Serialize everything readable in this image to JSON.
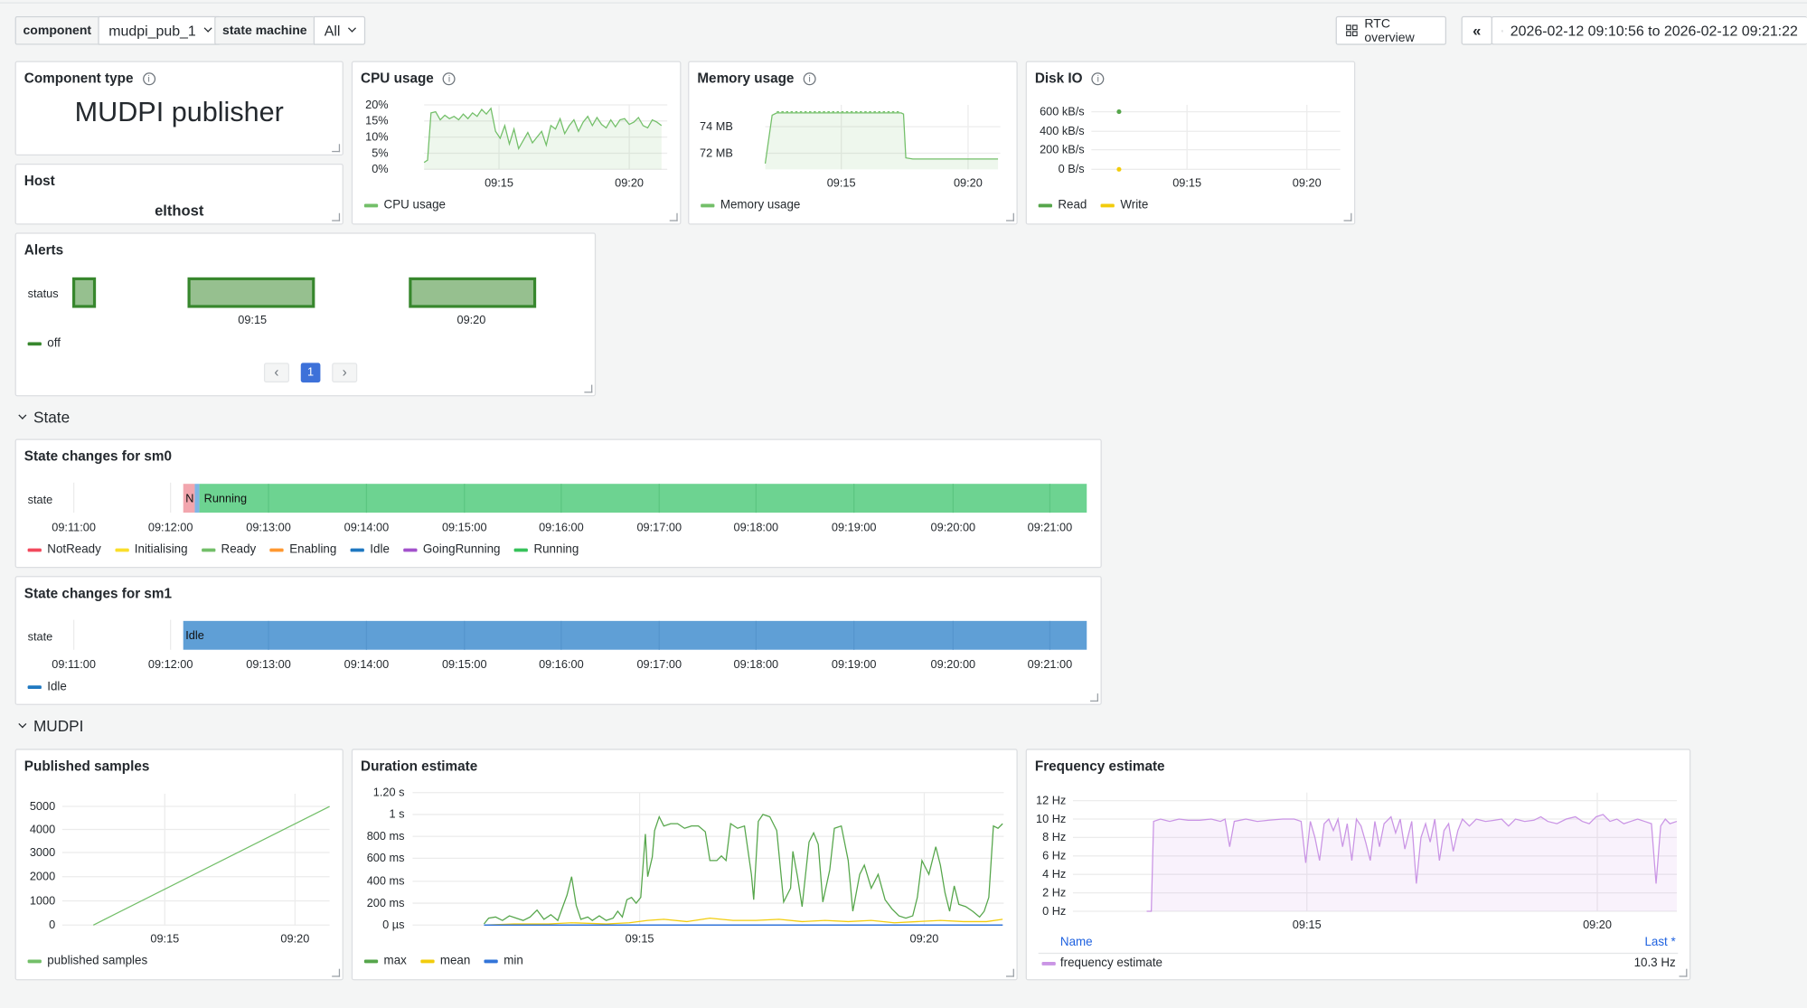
{
  "topbar": {
    "component_label": "component",
    "component_value": "mudpi_pub_1",
    "sm_label": "state machine",
    "sm_value": "All",
    "rtc_label": "RTC overview",
    "time_range": "2026-02-12 09:10:56 to 2026-02-12 09:21:22"
  },
  "component_type": {
    "title": "Component type",
    "value": "MUDPI publisher"
  },
  "host": {
    "title": "Host",
    "value": "elthost"
  },
  "cpu": {
    "title": "CPU usage",
    "yticks": [
      "20%",
      "15%",
      "10%",
      "5%",
      "0%"
    ],
    "xticks": [
      "09:15",
      "09:20"
    ],
    "legend": "CPU usage",
    "color": "#73bf69"
  },
  "memory": {
    "title": "Memory usage",
    "yticks": [
      "74 MB",
      "72 MB"
    ],
    "xticks": [
      "09:15",
      "09:20"
    ],
    "legend": "Memory usage",
    "color": "#73bf69"
  },
  "disk": {
    "title": "Disk IO",
    "yticks": [
      "600 kB/s",
      "400 kB/s",
      "200 kB/s",
      "0 B/s"
    ],
    "xticks": [
      "09:15",
      "09:20"
    ],
    "legend_read": "Read",
    "legend_write": "Write",
    "read_color": "#56a64b",
    "write_color": "#f2cc0c"
  },
  "alerts": {
    "title": "Alerts",
    "row_label": "status",
    "xticks": [
      "09:15",
      "09:20"
    ],
    "legend": "off",
    "page": "1",
    "prev": "‹",
    "next": "›",
    "color": "#37872d"
  },
  "section_state": "State",
  "sm0": {
    "title": "State changes for sm0",
    "row_label": "state",
    "short_label": "N",
    "bar_label": "Running",
    "xticks": [
      "09:11:00",
      "09:12:00",
      "09:13:00",
      "09:14:00",
      "09:15:00",
      "09:16:00",
      "09:17:00",
      "09:18:00",
      "09:19:00",
      "09:20:00",
      "09:21:00"
    ],
    "legend": [
      {
        "name": "NotReady",
        "color": "#f2495c"
      },
      {
        "name": "Initialising",
        "color": "#fade2a"
      },
      {
        "name": "Ready",
        "color": "#73bf69"
      },
      {
        "name": "Enabling",
        "color": "#ff9830"
      },
      {
        "name": "Idle",
        "color": "#1f78c1"
      },
      {
        "name": "GoingRunning",
        "color": "#a352cc"
      },
      {
        "name": "Running",
        "color": "#37c25b"
      }
    ]
  },
  "sm1": {
    "title": "State changes for sm1",
    "row_label": "state",
    "bar_label": "Idle",
    "xticks": [
      "09:11:00",
      "09:12:00",
      "09:13:00",
      "09:14:00",
      "09:15:00",
      "09:16:00",
      "09:17:00",
      "09:18:00",
      "09:19:00",
      "09:20:00",
      "09:21:00"
    ],
    "legend": "Idle",
    "color": "#1f78c1"
  },
  "section_mudpi": "MUDPI",
  "published": {
    "title": "Published samples",
    "yticks": [
      "5000",
      "4000",
      "3000",
      "2000",
      "1000",
      "0"
    ],
    "xticks": [
      "09:15",
      "09:20"
    ],
    "legend": "published samples",
    "color": "#73bf69"
  },
  "duration": {
    "title": "Duration estimate",
    "yticks": [
      "1.20 s",
      "1 s",
      "800 ms",
      "600 ms",
      "400 ms",
      "200 ms",
      "0 µs"
    ],
    "xticks": [
      "09:15",
      "09:20"
    ],
    "legend": [
      {
        "name": "max",
        "color": "#56a64b"
      },
      {
        "name": "mean",
        "color": "#f2cc0c"
      },
      {
        "name": "min",
        "color": "#3274d9"
      }
    ]
  },
  "frequency": {
    "title": "Frequency estimate",
    "yticks": [
      "12 Hz",
      "10 Hz",
      "8 Hz",
      "6 Hz",
      "4 Hz",
      "2 Hz",
      "0 Hz"
    ],
    "xticks": [
      "09:15",
      "09:20"
    ],
    "table_name": "Name",
    "table_last": "Last *",
    "series_name": "frequency estimate",
    "series_last": "10.3 Hz",
    "color": "#ca95e5"
  },
  "chart_data": [
    {
      "type": "line",
      "title": "CPU usage",
      "x": [
        "09:12",
        "09:13",
        "09:14",
        "09:15",
        "09:16",
        "09:17",
        "09:18",
        "09:19",
        "09:20",
        "09:21"
      ],
      "series": [
        {
          "name": "CPU usage",
          "values": [
            12,
            17,
            14,
            15,
            10,
            13,
            15,
            14,
            16,
            15
          ]
        }
      ],
      "ylim": [
        0,
        20
      ]
    },
    {
      "type": "line",
      "title": "Memory usage",
      "x": [
        "09:12",
        "09:13",
        "09:15",
        "09:17",
        "09:18",
        "09:19",
        "09:21"
      ],
      "series": [
        {
          "name": "Memory usage",
          "values": [
            72,
            74.5,
            74.5,
            74.5,
            71.8,
            71.9,
            71.9
          ]
        }
      ]
    },
    {
      "type": "scatter",
      "title": "Disk IO",
      "series": [
        {
          "name": "Read",
          "values": [
            600
          ]
        },
        {
          "name": "Write",
          "values": [
            0
          ]
        }
      ]
    },
    {
      "type": "line",
      "title": "Published samples",
      "x": [
        "09:12",
        "09:21"
      ],
      "series": [
        {
          "name": "published samples",
          "values": [
            0,
            5000
          ]
        }
      ],
      "ylim": [
        0,
        5500
      ]
    },
    {
      "type": "line",
      "title": "Duration estimate",
      "series": [
        {
          "name": "max",
          "values": [
            0,
            50,
            400,
            50,
            900,
            950,
            300,
            950,
            100,
            500,
            900
          ]
        },
        {
          "name": "mean",
          "values": [
            0,
            10,
            20,
            40,
            30,
            20,
            30,
            20,
            10,
            30,
            40
          ]
        },
        {
          "name": "min",
          "values": [
            0,
            0,
            0,
            0,
            0,
            0,
            0,
            0,
            0,
            0,
            0
          ]
        }
      ]
    },
    {
      "type": "line",
      "title": "Frequency estimate",
      "series": [
        {
          "name": "frequency estimate",
          "values": [
            0,
            10,
            10,
            10,
            8,
            10,
            5,
            10,
            10,
            3,
            10,
            10.3
          ]
        }
      ],
      "ylim": [
        0,
        12
      ]
    }
  ]
}
